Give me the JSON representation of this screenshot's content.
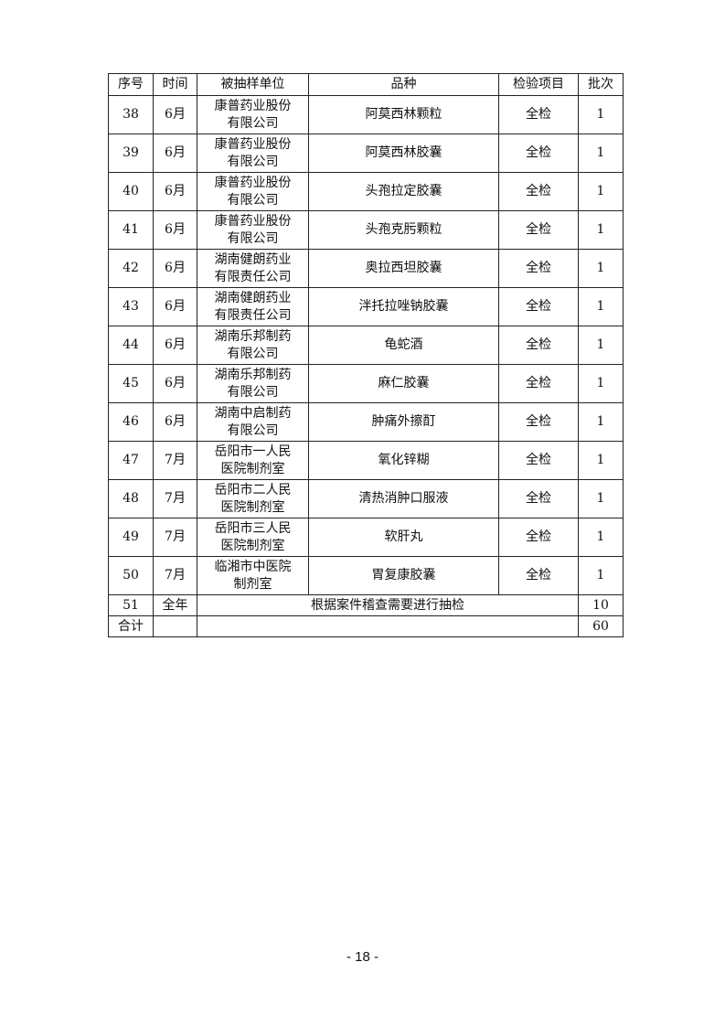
{
  "table": {
    "headers": [
      "序号",
      "时间",
      "被抽样单位",
      "品种",
      "检验项目",
      "批次"
    ],
    "rows": [
      {
        "no": "38",
        "time": "6月",
        "unit1": "康普药业股份",
        "unit2": "有限公司",
        "item": "阿莫西林颗粒",
        "test": "全检",
        "batch": "1"
      },
      {
        "no": "39",
        "time": "6月",
        "unit1": "康普药业股份",
        "unit2": "有限公司",
        "item": "阿莫西林胶囊",
        "test": "全检",
        "batch": "1"
      },
      {
        "no": "40",
        "time": "6月",
        "unit1": "康普药业股份",
        "unit2": "有限公司",
        "item": "头孢拉定胶囊",
        "test": "全检",
        "batch": "1"
      },
      {
        "no": "41",
        "time": "6月",
        "unit1": "康普药业股份",
        "unit2": "有限公司",
        "item": "头孢克肟颗粒",
        "test": "全检",
        "batch": "1"
      },
      {
        "no": "42",
        "time": "6月",
        "unit1": "湖南健朗药业",
        "unit2": "有限责任公司",
        "item": "奥拉西坦胶囊",
        "test": "全检",
        "batch": "1"
      },
      {
        "no": "43",
        "time": "6月",
        "unit1": "湖南健朗药业",
        "unit2": "有限责任公司",
        "item": "泮托拉唑钠胶囊",
        "test": "全检",
        "batch": "1"
      },
      {
        "no": "44",
        "time": "6月",
        "unit1": "湖南乐邦制药",
        "unit2": "有限公司",
        "item": "龟蛇酒",
        "test": "全检",
        "batch": "1"
      },
      {
        "no": "45",
        "time": "6月",
        "unit1": "湖南乐邦制药",
        "unit2": "有限公司",
        "item": "麻仁胶囊",
        "test": "全检",
        "batch": "1"
      },
      {
        "no": "46",
        "time": "6月",
        "unit1": "湖南中启制药",
        "unit2": "有限公司",
        "item": "肿痛外擦酊",
        "test": "全检",
        "batch": "1"
      },
      {
        "no": "47",
        "time": "7月",
        "unit1": "岳阳市一人民",
        "unit2": "医院制剂室",
        "item": "氧化锌糊",
        "test": "全检",
        "batch": "1"
      },
      {
        "no": "48",
        "time": "7月",
        "unit1": "岳阳市二人民",
        "unit2": "医院制剂室",
        "item": "清热消肿口服液",
        "test": "全检",
        "batch": "1"
      },
      {
        "no": "49",
        "time": "7月",
        "unit1": "岳阳市三人民",
        "unit2": "医院制剂室",
        "item": "软肝丸",
        "test": "全检",
        "batch": "1"
      },
      {
        "no": "50",
        "time": "7月",
        "unit1": "临湘市中医院",
        "unit2": "制剂室",
        "item": "胃复康胶囊",
        "test": "全检",
        "batch": "1"
      }
    ],
    "special": {
      "no": "51",
      "time": "全年",
      "desc": "根据案件稽查需要进行抽检",
      "batch": "10"
    },
    "total": {
      "label": "合计",
      "batch": "60"
    }
  },
  "footer": {
    "page": "- 18 -"
  }
}
